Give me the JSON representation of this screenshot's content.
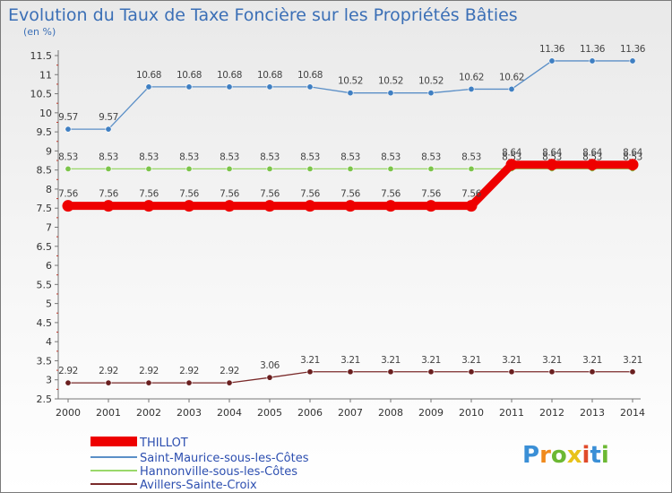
{
  "chart_data": {
    "type": "line",
    "title": "Evolution du Taux de Taxe Foncière sur les Propriétés Bâties",
    "unit_label": "(en %)",
    "xlabel": "",
    "ylabel": "(en %)",
    "ylim": [
      2.5,
      11.5
    ],
    "ytick_step": 0.5,
    "yticks": [
      "2.5",
      "3",
      "3.5",
      "4",
      "4.5",
      "5",
      "5.5",
      "6",
      "6.5",
      "7",
      "7.5",
      "8",
      "8.5",
      "9",
      "9.5",
      "10",
      "10.5",
      "11",
      "11.5"
    ],
    "grid": false,
    "legend_position": "bottom-left",
    "categories": [
      "2000",
      "2001",
      "2002",
      "2003",
      "2004",
      "2005",
      "2006",
      "2007",
      "2008",
      "2009",
      "2010",
      "2011",
      "2012",
      "2013",
      "2014"
    ],
    "series": [
      {
        "name": "THILLOT",
        "color": "#ee0000",
        "thick": true,
        "values": [
          7.56,
          7.56,
          7.56,
          7.56,
          7.56,
          7.56,
          7.56,
          7.56,
          7.56,
          7.56,
          7.56,
          8.64,
          8.64,
          8.64,
          8.64
        ],
        "labels": [
          "7.56",
          "7.56",
          "7.56",
          "7.56",
          "7.56",
          "7.56",
          "7.56",
          "7.56",
          "7.56",
          "7.56",
          "7.56",
          "8.64",
          "8.64",
          "8.64",
          "8.64"
        ]
      },
      {
        "name": "Saint-Maurice-sous-les-Côtes",
        "color": "#5b8fc7",
        "point_color": "#3f7fc2",
        "thick": false,
        "values": [
          9.57,
          9.57,
          10.68,
          10.68,
          10.68,
          10.68,
          10.68,
          10.52,
          10.52,
          10.52,
          10.62,
          10.62,
          11.36,
          11.36,
          11.36
        ],
        "labels": [
          "9.57",
          "9.57",
          "10.68",
          "10.68",
          "10.68",
          "10.68",
          "10.68",
          "10.52",
          "10.52",
          "10.52",
          "10.62",
          "10.62",
          "11.36",
          "11.36",
          "11.36"
        ]
      },
      {
        "name": "Hannonville-sous-les-Côtes",
        "color": "#9ad86a",
        "point_color": "#7cc44a",
        "thick": false,
        "values": [
          8.53,
          8.53,
          8.53,
          8.53,
          8.53,
          8.53,
          8.53,
          8.53,
          8.53,
          8.53,
          8.53,
          8.53,
          8.53,
          8.53,
          8.53
        ],
        "labels": [
          "8.53",
          "8.53",
          "8.53",
          "8.53",
          "8.53",
          "8.53",
          "8.53",
          "8.53",
          "8.53",
          "8.53",
          "8.53",
          "8.53",
          "8.53",
          "8.53",
          "8.53"
        ]
      },
      {
        "name": "Avillers-Sainte-Croix",
        "color": "#7a2a2a",
        "point_color": "#6a1f1f",
        "thick": false,
        "values": [
          2.92,
          2.92,
          2.92,
          2.92,
          2.92,
          3.06,
          3.21,
          3.21,
          3.21,
          3.21,
          3.21,
          3.21,
          3.21,
          3.21,
          3.21
        ],
        "labels": [
          "2.92",
          "2.92",
          "2.92",
          "2.92",
          "2.92",
          "3.06",
          "3.21",
          "3.21",
          "3.21",
          "3.21",
          "3.21",
          "3.21",
          "3.21",
          "3.21",
          "3.21"
        ]
      }
    ],
    "legend_order": [
      0,
      1,
      2,
      3
    ]
  },
  "brand": {
    "logo_text": "Proxiti",
    "colors": [
      "#3a8fd6",
      "#f08a1c",
      "#6cb833",
      "#e8c21a",
      "#e04a2a",
      "#3a8fd6",
      "#6cb833"
    ]
  }
}
